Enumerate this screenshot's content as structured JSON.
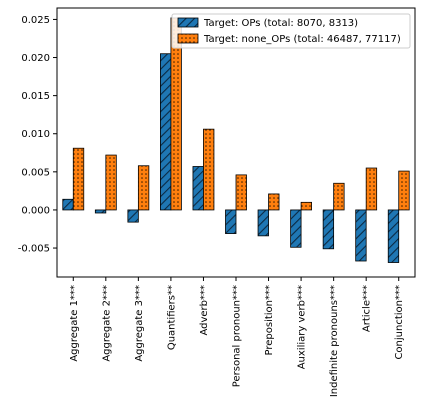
{
  "chart_data": {
    "type": "bar",
    "categories": [
      "Aggregate 1***",
      "Aggregate 2***",
      "Aggregate 3***",
      "Quantifiers**",
      "Adverb***",
      "Personal pronoun***",
      "Preposition***",
      "Auxiliary verb***",
      "Indefinite pronouns***",
      "Article***",
      "Conjunction***"
    ],
    "series": [
      {
        "name": "Target: OPs (total: 8070, 8313)",
        "values": [
          0.0014,
          -0.0004,
          -0.0016,
          0.0205,
          0.0057,
          -0.0031,
          -0.0034,
          -0.0049,
          -0.0051,
          -0.0067,
          -0.0069
        ],
        "color": "#1f77b4",
        "hatch": "diagonal"
      },
      {
        "name": "Target: none_OPs (total: 46487, 77117)",
        "values": [
          0.0081,
          0.0072,
          0.0058,
          0.0252,
          0.0106,
          0.0046,
          0.0021,
          0.001,
          0.0035,
          0.0055,
          0.0051
        ],
        "color": "#ff7f0e",
        "hatch": "dots"
      }
    ],
    "ylim": [
      -0.0088,
      0.0265
    ],
    "yticks": [
      "-0.005",
      "0.000",
      "0.005",
      "0.010",
      "0.015",
      "0.020",
      "0.025"
    ],
    "ytick_values": [
      -0.005,
      0.0,
      0.005,
      0.01,
      0.015,
      0.02,
      0.025
    ],
    "legend_position": "top-right",
    "grid": false,
    "title": "",
    "xlabel": "",
    "ylabel": ""
  }
}
